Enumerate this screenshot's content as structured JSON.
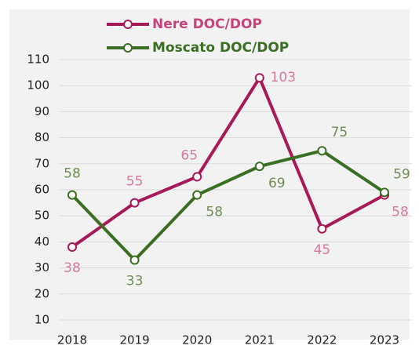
{
  "chart_data": {
    "type": "line",
    "categories": [
      "2018",
      "2019",
      "2020",
      "2021",
      "2022",
      "2023"
    ],
    "series": [
      {
        "name": "Nere DOC/DOP",
        "color": "#a8195a",
        "label_color": "#d9799d",
        "values": [
          38,
          55,
          65,
          103,
          45,
          58
        ]
      },
      {
        "name": "Moscato DOC/DOP",
        "color": "#3a6e23",
        "label_color": "#6f8f52",
        "values": [
          58,
          33,
          58,
          69,
          75,
          59
        ]
      }
    ],
    "ylim": [
      10,
      110
    ],
    "yticks": [
      10,
      20,
      30,
      40,
      50,
      60,
      70,
      80,
      90,
      100,
      110
    ],
    "grid": true,
    "legend": "top"
  }
}
